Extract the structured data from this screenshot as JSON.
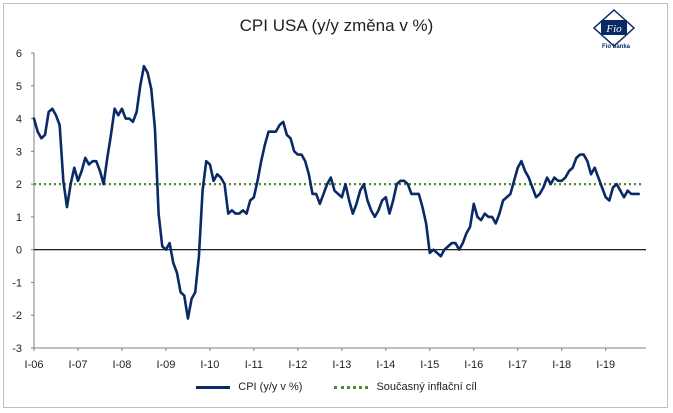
{
  "title": "CPI USA (y/y změna v %)",
  "logo": {
    "brand": "Fio banka",
    "mark": "Fio"
  },
  "legend": {
    "series_label": "CPI (y/y v %)",
    "target_label": "Současný inflační cíl"
  },
  "colors": {
    "series": "#0a2a66",
    "target": "#4e8a2e",
    "zero_line": "#000000",
    "axis": "#7f7f7f"
  },
  "chart_data": {
    "type": "line",
    "title": "CPI USA (y/y změna v %)",
    "xlabel": "",
    "ylabel": "",
    "ylim": [
      -3,
      6
    ],
    "yticks": [
      6,
      5,
      4,
      3,
      2,
      1,
      0,
      -1,
      -2,
      -3
    ],
    "x_ticks": [
      "I-06",
      "I-07",
      "I-08",
      "I-09",
      "I-10",
      "I-11",
      "I-12",
      "I-13",
      "I-14",
      "I-15",
      "I-16",
      "I-17",
      "I-18",
      "I-19"
    ],
    "target": {
      "name": "Současný inflační cíl",
      "value": 2
    },
    "legend_position": "bottom",
    "grid": false,
    "series": [
      {
        "name": "CPI (y/y v %)",
        "start": "2006-01",
        "frequency": "monthly",
        "values": [
          4.0,
          3.6,
          3.4,
          3.5,
          4.2,
          4.3,
          4.1,
          3.8,
          2.1,
          1.3,
          2.0,
          2.5,
          2.1,
          2.4,
          2.8,
          2.6,
          2.7,
          2.7,
          2.4,
          2.0,
          2.8,
          3.5,
          4.3,
          4.1,
          4.3,
          4.0,
          4.0,
          3.9,
          4.2,
          5.0,
          5.6,
          5.4,
          4.9,
          3.7,
          1.1,
          0.1,
          0.0,
          0.2,
          -0.4,
          -0.7,
          -1.3,
          -1.4,
          -2.1,
          -1.5,
          -1.3,
          -0.2,
          1.8,
          2.7,
          2.6,
          2.1,
          2.3,
          2.2,
          2.0,
          1.1,
          1.2,
          1.1,
          1.1,
          1.2,
          1.1,
          1.5,
          1.6,
          2.1,
          2.7,
          3.2,
          3.6,
          3.6,
          3.6,
          3.8,
          3.9,
          3.5,
          3.4,
          3.0,
          2.9,
          2.9,
          2.7,
          2.3,
          1.7,
          1.7,
          1.4,
          1.7,
          2.0,
          2.2,
          1.8,
          1.7,
          1.6,
          2.0,
          1.5,
          1.1,
          1.4,
          1.8,
          2.0,
          1.5,
          1.2,
          1.0,
          1.2,
          1.5,
          1.6,
          1.1,
          1.5,
          2.0,
          2.1,
          2.1,
          2.0,
          1.7,
          1.7,
          1.7,
          1.3,
          0.8,
          -0.1,
          0.0,
          -0.1,
          -0.2,
          0.0,
          0.1,
          0.2,
          0.2,
          0.0,
          0.2,
          0.5,
          0.7,
          1.4,
          1.0,
          0.9,
          1.1,
          1.0,
          1.0,
          0.8,
          1.1,
          1.5,
          1.6,
          1.7,
          2.1,
          2.5,
          2.7,
          2.4,
          2.2,
          1.9,
          1.6,
          1.7,
          1.9,
          2.2,
          2.0,
          2.2,
          2.1,
          2.1,
          2.2,
          2.4,
          2.5,
          2.8,
          2.9,
          2.9,
          2.7,
          2.3,
          2.5,
          2.2,
          1.9,
          1.6,
          1.5,
          1.9,
          2.0,
          1.8,
          1.6,
          1.8,
          1.7,
          1.7,
          1.7
        ]
      }
    ]
  }
}
